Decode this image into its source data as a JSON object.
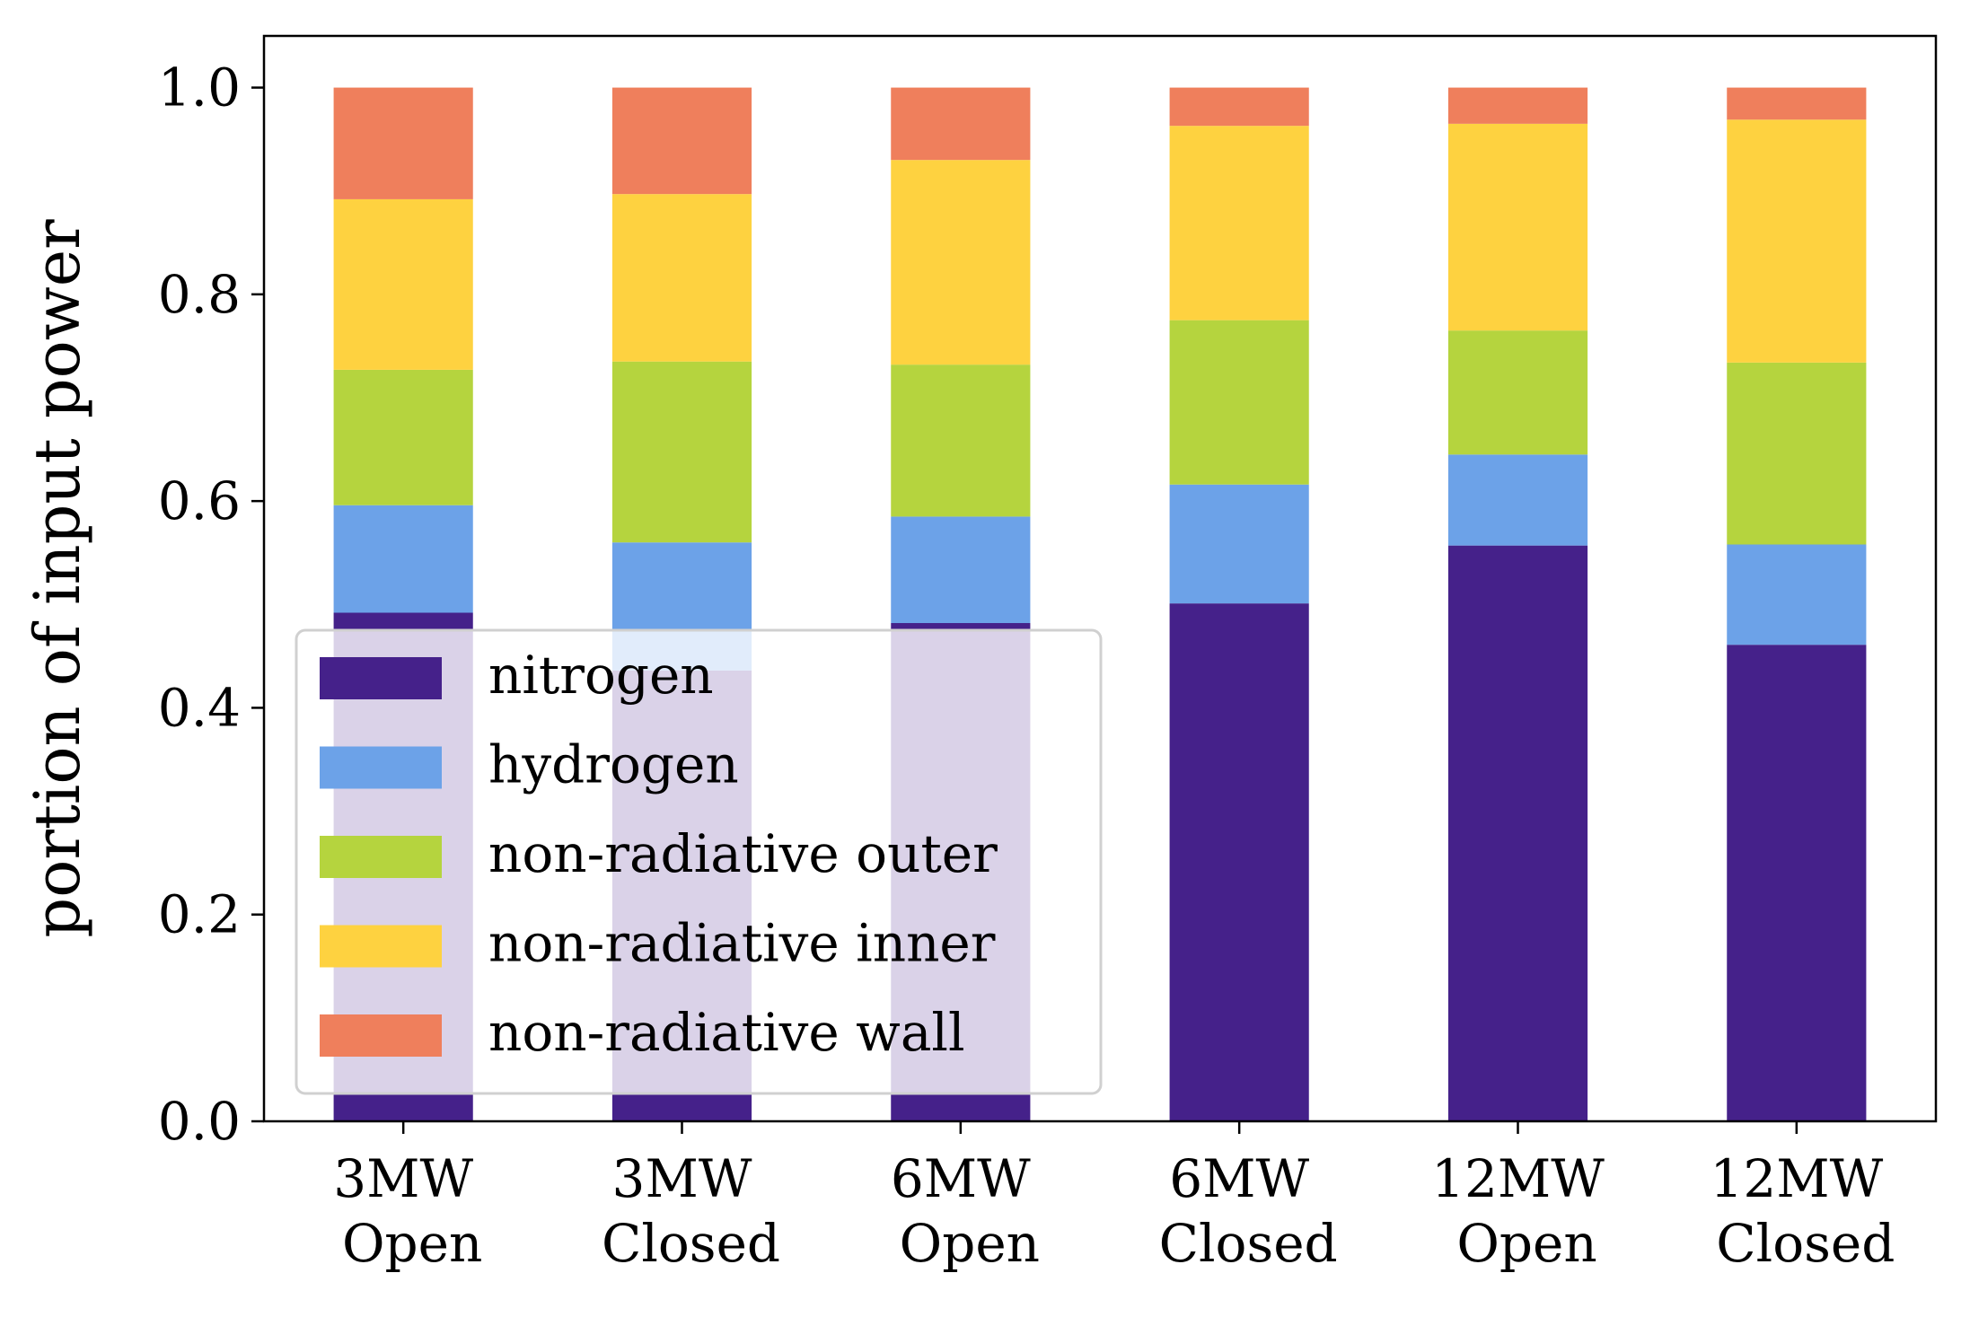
{
  "chart_data": {
    "type": "bar",
    "stacked": true,
    "categories": [
      [
        "3MW",
        "Open"
      ],
      [
        "3MW",
        "Closed"
      ],
      [
        "6MW",
        "Open"
      ],
      [
        "6MW",
        "Closed"
      ],
      [
        "12MW",
        "Open"
      ],
      [
        "12MW",
        "Closed"
      ]
    ],
    "series": [
      {
        "name": "nitrogen",
        "color": "#45218a",
        "values": [
          0.492,
          0.436,
          0.482,
          0.501,
          0.557,
          0.461
        ]
      },
      {
        "name": "hydrogen",
        "color": "#6ca2e8",
        "values": [
          0.104,
          0.124,
          0.103,
          0.115,
          0.088,
          0.097
        ]
      },
      {
        "name": "non-radiative outer",
        "color": "#b5d43e",
        "values": [
          0.131,
          0.175,
          0.147,
          0.159,
          0.12,
          0.176
        ]
      },
      {
        "name": "non-radiative inner",
        "color": "#fed240",
        "values": [
          0.165,
          0.162,
          0.198,
          0.188,
          0.2,
          0.235
        ]
      },
      {
        "name": "non-radiative wall",
        "color": "#ef7f5c",
        "values": [
          0.108,
          0.103,
          0.07,
          0.037,
          0.035,
          0.031
        ]
      }
    ],
    "title": "",
    "xlabel": "",
    "ylabel": "portion of input power",
    "ylim": [
      0,
      1.05
    ],
    "yticks": [
      "0.0",
      "0.2",
      "0.4",
      "0.6",
      "0.8",
      "1.0"
    ],
    "grid": false,
    "legend_position": "lower-left"
  }
}
